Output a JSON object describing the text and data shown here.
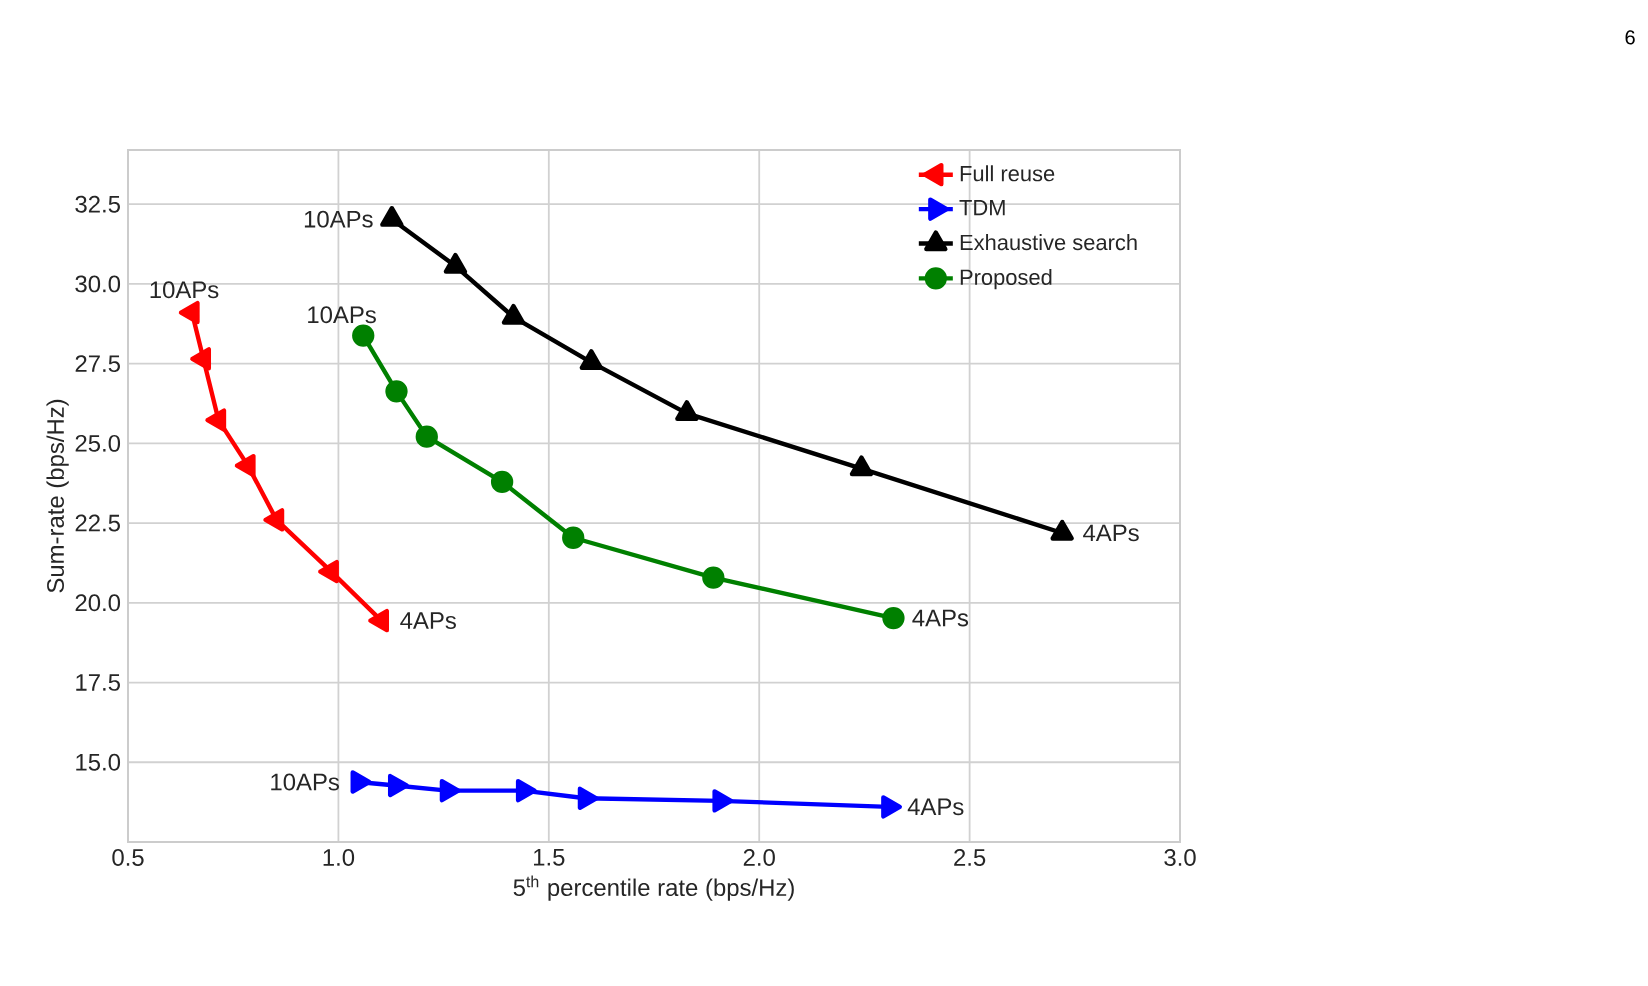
{
  "chart_data": {
    "type": "line",
    "xlabel": "5$^{th}$ percentile rate (bps/Hz)",
    "ylabel": "Sum-rate (bps/Hz)",
    "xlim": [
      0.5,
      3.0
    ],
    "ylim": [
      12.5,
      34.2
    ],
    "xticks": [
      0.5,
      {
        "value": 1.0,
        "label": "1.0"
      },
      1.5,
      {
        "value": 2.0,
        "label": "2.0"
      },
      2.5,
      {
        "value": 3.0,
        "label": "3.0"
      }
    ],
    "yticks": [
      {
        "value": 15.0,
        "label": "15.0"
      },
      17.5,
      {
        "value": 20.0,
        "label": "20.0"
      },
      22.5,
      {
        "value": 25.0,
        "label": "25.0"
      },
      27.5,
      {
        "value": 30.0,
        "label": "30.0"
      },
      32.5
    ],
    "grid": true,
    "legend": "top right",
    "line_style": "solid",
    "series": [
      {
        "name": "Full reuse",
        "color": "#ff0000",
        "marker": "triangle-left",
        "x": [
          0.652,
          0.679,
          0.715,
          0.785,
          0.853,
          0.983,
          1.102
        ],
        "values": [
          29.1,
          27.65,
          25.73,
          24.3,
          22.6,
          20.98,
          19.44
        ]
      },
      {
        "name": "TDM",
        "color": "#0000ff",
        "marker": "triangle-right",
        "x": [
          1.047,
          1.136,
          1.259,
          1.44,
          1.587,
          1.907,
          2.308
        ],
        "values": [
          14.38,
          14.27,
          14.11,
          14.11,
          13.87,
          13.79,
          13.6
        ]
      },
      {
        "name": "Exhaustive search",
        "color": "#000000",
        "marker": "triangle",
        "x": [
          1.127,
          1.278,
          1.416,
          1.601,
          1.828,
          2.243,
          2.72
        ],
        "values": [
          32.03,
          30.56,
          28.96,
          27.54,
          25.94,
          24.21,
          22.19
        ]
      },
      {
        "name": "Proposed",
        "color": "#008000",
        "marker": "circle",
        "x": [
          1.059,
          1.138,
          1.21,
          1.389,
          1.558,
          1.891,
          2.319
        ],
        "values": [
          28.38,
          26.63,
          25.21,
          23.79,
          22.04,
          20.79,
          19.52
        ]
      }
    ],
    "annotations": [
      {
        "text": "10APs",
        "x": 0.652,
        "y": 29.1
      },
      {
        "text": "4APs",
        "x": 1.102,
        "y": 19.44
      },
      {
        "text": "10APs",
        "x": 1.047,
        "y": 14.38
      },
      {
        "text": "4APs",
        "x": 2.308,
        "y": 13.6
      },
      {
        "text": "10APs",
        "x": 1.127,
        "y": 32.03
      },
      {
        "text": "4APs",
        "x": 2.72,
        "y": 22.19
      },
      {
        "text": "10APs",
        "x": 1.059,
        "y": 28.38
      },
      {
        "text": "4APs",
        "x": 2.319,
        "y": 19.52
      },
      "6"
    ]
  }
}
